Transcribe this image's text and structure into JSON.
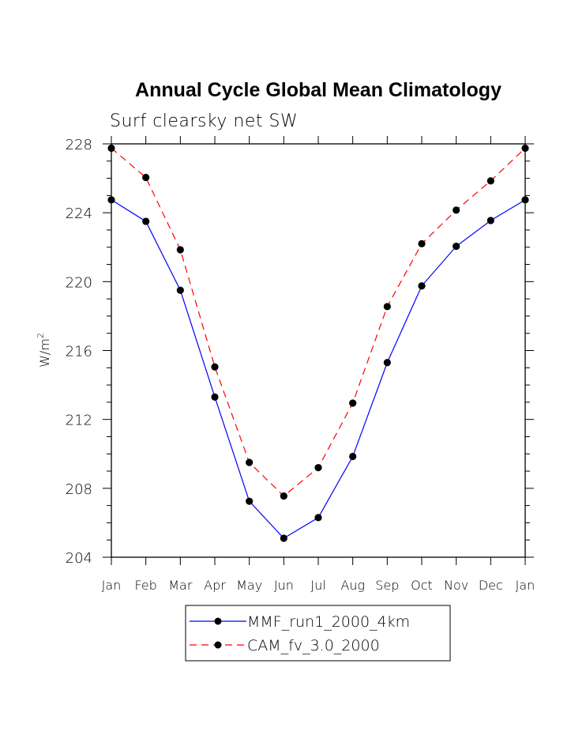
{
  "chart_data": {
    "type": "line",
    "title": "Annual Cycle Global Mean Climatology",
    "subtitle": "Surf clearsky net SW",
    "ylabel": "W/m",
    "ylabel_superscript": "2",
    "xlabel": "",
    "categories": [
      "Jan",
      "Feb",
      "Mar",
      "Apr",
      "May",
      "Jun",
      "Jul",
      "Aug",
      "Sep",
      "Oct",
      "Nov",
      "Dec",
      "Jan"
    ],
    "ylim": [
      204,
      228
    ],
    "yticks": [
      204,
      208,
      212,
      216,
      220,
      224,
      228
    ],
    "ytick_labels": [
      "204",
      "208",
      "212",
      "216",
      "220",
      "224",
      "228"
    ],
    "series": [
      {
        "name": "MMF_run1_2000_4km",
        "color": "#0000ff",
        "dash": "solid",
        "values": [
          224.75,
          223.5,
          219.5,
          213.3,
          207.25,
          205.1,
          206.3,
          209.85,
          215.3,
          219.75,
          222.05,
          223.55,
          224.75
        ]
      },
      {
        "name": "CAM_fv_3.0_2000",
        "color": "#ff0000",
        "dash": "dashed",
        "values": [
          227.75,
          226.05,
          221.85,
          215.05,
          209.5,
          207.55,
          209.2,
          212.95,
          218.55,
          222.2,
          224.15,
          225.85,
          227.75
        ]
      }
    ],
    "marker": "filled-circle",
    "marker_color": "#000000",
    "grid": false,
    "legend_position": "bottom"
  }
}
